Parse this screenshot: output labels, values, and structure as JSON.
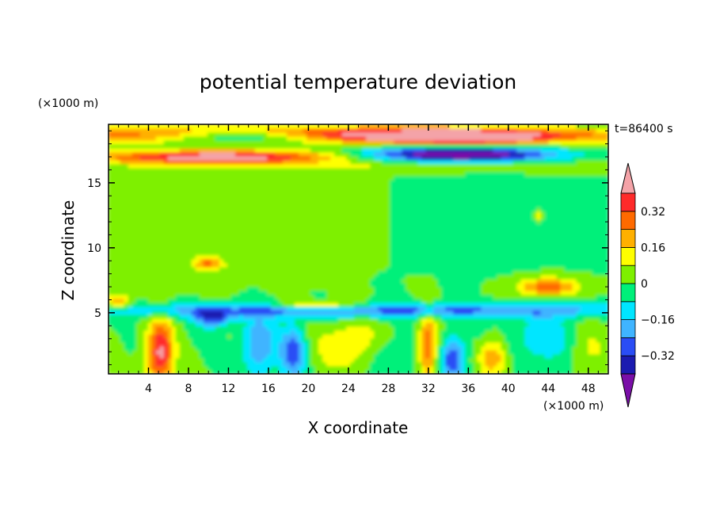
{
  "chart_data": {
    "type": "heatmap",
    "title": "potential temperature deviation",
    "xlabel": "X coordinate",
    "ylabel": "Z coordinate",
    "x_unit": "(×1000 m)",
    "y_unit": "(×1000 m)",
    "time_label": "t=86400 s",
    "xlim": [
      0,
      50
    ],
    "ylim": [
      0.3,
      19.5
    ],
    "x_ticks": [
      4,
      8,
      12,
      16,
      20,
      24,
      28,
      32,
      36,
      40,
      44,
      48
    ],
    "y_ticks": [
      5,
      10,
      15
    ],
    "colorbar": {
      "levels": [
        -0.4,
        -0.32,
        -0.24,
        -0.16,
        -0.08,
        0,
        0.08,
        0.16,
        0.24,
        0.32,
        0.4
      ],
      "tick_labels": [
        {
          "value": 0.32,
          "text": "0.32"
        },
        {
          "value": 0.16,
          "text": "0.16"
        },
        {
          "value": 0,
          "text": "0"
        },
        {
          "value": -0.16,
          "text": "−0.16"
        },
        {
          "value": -0.32,
          "text": "−0.32"
        }
      ],
      "colors": [
        "#7a0fa8",
        "#1b1bb0",
        "#2a4df5",
        "#3fb4ff",
        "#00e6ff",
        "#00f07a",
        "#7ef000",
        "#ffff00",
        "#ffb000",
        "#ff6a00",
        "#ff2a2a",
        "#f4a3a8"
      ],
      "extend": "both"
    }
  }
}
